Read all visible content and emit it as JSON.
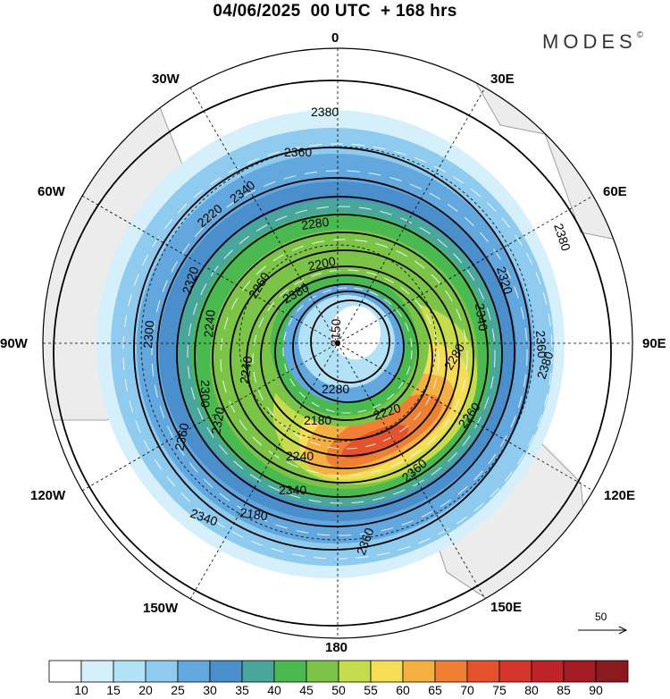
{
  "header": {
    "title": "04/06/2025  00 UTC  + 168 hrs",
    "brand": "MODES",
    "brand_mark": "©"
  },
  "longitude_labels": {
    "n0": "0",
    "e30": "30E",
    "e60": "60E",
    "e90": "90E",
    "e120": "120E",
    "e150": "150E",
    "s180": "180",
    "w150": "150W",
    "w120": "120W",
    "w90": "90W",
    "w60": "60W",
    "w30": "30W"
  },
  "contour_labels": [
    "2380",
    "2360",
    "2340",
    "2320",
    "2300",
    "2280",
    "2260",
    "2240",
    "2220",
    "2200",
    "2180",
    "2150",
    "2380",
    "2360",
    "2340",
    "2320",
    "2280",
    "2260",
    "2240",
    "2220",
    "2180",
    "2340",
    "2320",
    "2280",
    "2240",
    "2300",
    "2360",
    "2340",
    "2360",
    "2380",
    "2360",
    "2380"
  ],
  "wind_scale": {
    "label": "50"
  },
  "colorbar": {
    "levels": [
      "10",
      "15",
      "20",
      "25",
      "30",
      "35",
      "40",
      "45",
      "50",
      "55",
      "60",
      "65",
      "70",
      "75",
      "80",
      "85",
      "90"
    ],
    "colors": [
      "#ffffff",
      "#d6f0fb",
      "#b3e2f7",
      "#8ecbee",
      "#62a8de",
      "#4a8fcb",
      "#48a79a",
      "#4ab950",
      "#7cc447",
      "#c6dc4d",
      "#f6dd56",
      "#f5b041",
      "#ef7f32",
      "#e5532e",
      "#d6332b",
      "#bf2328",
      "#a31b23",
      "#8a1a1e"
    ]
  }
}
